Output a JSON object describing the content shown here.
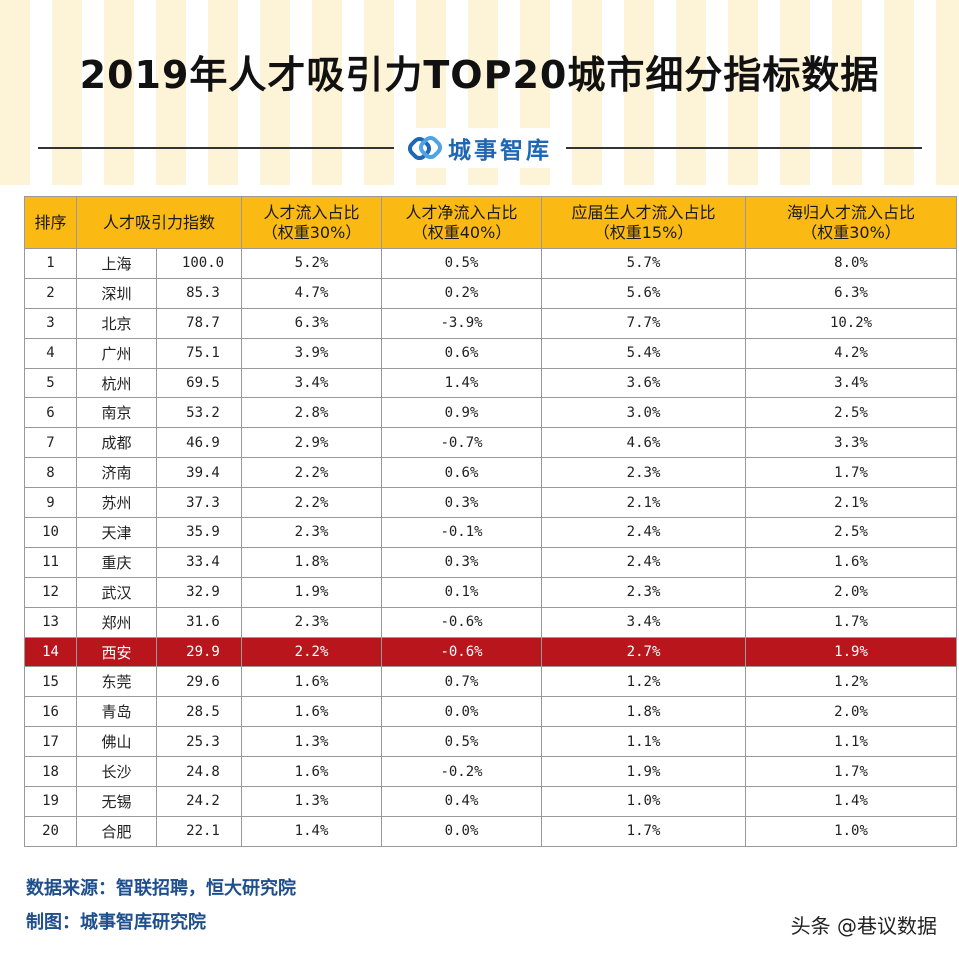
{
  "title": "2019年人才吸引力TOP20城市细分指标数据",
  "brand": {
    "name": "城事智库",
    "icon": "link-logo-icon",
    "color": "#1f67b3"
  },
  "colors": {
    "header_bg": "#fbb913",
    "highlight_row": "#b8151c",
    "stripe": "#fdf3d6"
  },
  "chart_data": {
    "type": "table",
    "title": "2019年人才吸引力TOP20城市细分指标数据",
    "headers": [
      {
        "line1": "排序",
        "line2": ""
      },
      {
        "line1": "人才吸引力指数",
        "line2": ""
      },
      {
        "line1": "人才流入占比",
        "line2": "（权重30%）"
      },
      {
        "line1": "人才净流入占比",
        "line2": "（权重40%）"
      },
      {
        "line1": "应届生人才流入占比",
        "line2": "（权重15%）"
      },
      {
        "line1": "海归人才流入占比",
        "line2": "（权重30%）"
      }
    ],
    "highlight_rank": "14",
    "rows": [
      {
        "rank": "1",
        "city": "上海",
        "index": "100.0",
        "inflow": "5.2%",
        "net": "0.5%",
        "grad": "5.7%",
        "returnee": "8.0%"
      },
      {
        "rank": "2",
        "city": "深圳",
        "index": "85.3",
        "inflow": "4.7%",
        "net": "0.2%",
        "grad": "5.6%",
        "returnee": "6.3%"
      },
      {
        "rank": "3",
        "city": "北京",
        "index": "78.7",
        "inflow": "6.3%",
        "net": "-3.9%",
        "grad": "7.7%",
        "returnee": "10.2%"
      },
      {
        "rank": "4",
        "city": "广州",
        "index": "75.1",
        "inflow": "3.9%",
        "net": "0.6%",
        "grad": "5.4%",
        "returnee": "4.2%"
      },
      {
        "rank": "5",
        "city": "杭州",
        "index": "69.5",
        "inflow": "3.4%",
        "net": "1.4%",
        "grad": "3.6%",
        "returnee": "3.4%"
      },
      {
        "rank": "6",
        "city": "南京",
        "index": "53.2",
        "inflow": "2.8%",
        "net": "0.9%",
        "grad": "3.0%",
        "returnee": "2.5%"
      },
      {
        "rank": "7",
        "city": "成都",
        "index": "46.9",
        "inflow": "2.9%",
        "net": "-0.7%",
        "grad": "4.6%",
        "returnee": "3.3%"
      },
      {
        "rank": "8",
        "city": "济南",
        "index": "39.4",
        "inflow": "2.2%",
        "net": "0.6%",
        "grad": "2.3%",
        "returnee": "1.7%"
      },
      {
        "rank": "9",
        "city": "苏州",
        "index": "37.3",
        "inflow": "2.2%",
        "net": "0.3%",
        "grad": "2.1%",
        "returnee": "2.1%"
      },
      {
        "rank": "10",
        "city": "天津",
        "index": "35.9",
        "inflow": "2.3%",
        "net": "-0.1%",
        "grad": "2.4%",
        "returnee": "2.5%"
      },
      {
        "rank": "11",
        "city": "重庆",
        "index": "33.4",
        "inflow": "1.8%",
        "net": "0.3%",
        "grad": "2.4%",
        "returnee": "1.6%"
      },
      {
        "rank": "12",
        "city": "武汉",
        "index": "32.9",
        "inflow": "1.9%",
        "net": "0.1%",
        "grad": "2.3%",
        "returnee": "2.0%"
      },
      {
        "rank": "13",
        "city": "郑州",
        "index": "31.6",
        "inflow": "2.3%",
        "net": "-0.6%",
        "grad": "3.4%",
        "returnee": "1.7%"
      },
      {
        "rank": "14",
        "city": "西安",
        "index": "29.9",
        "inflow": "2.2%",
        "net": "-0.6%",
        "grad": "2.7%",
        "returnee": "1.9%"
      },
      {
        "rank": "15",
        "city": "东莞",
        "index": "29.6",
        "inflow": "1.6%",
        "net": "0.7%",
        "grad": "1.2%",
        "returnee": "1.2%"
      },
      {
        "rank": "16",
        "city": "青岛",
        "index": "28.5",
        "inflow": "1.6%",
        "net": "0.0%",
        "grad": "1.8%",
        "returnee": "2.0%"
      },
      {
        "rank": "17",
        "city": "佛山",
        "index": "25.3",
        "inflow": "1.3%",
        "net": "0.5%",
        "grad": "1.1%",
        "returnee": "1.1%"
      },
      {
        "rank": "18",
        "city": "长沙",
        "index": "24.8",
        "inflow": "1.6%",
        "net": "-0.2%",
        "grad": "1.9%",
        "returnee": "1.7%"
      },
      {
        "rank": "19",
        "city": "无锡",
        "index": "24.2",
        "inflow": "1.3%",
        "net": "0.4%",
        "grad": "1.0%",
        "returnee": "1.4%"
      },
      {
        "rank": "20",
        "city": "合肥",
        "index": "22.1",
        "inflow": "1.4%",
        "net": "0.0%",
        "grad": "1.7%",
        "returnee": "1.0%"
      }
    ]
  },
  "footer": {
    "source": "数据来源：智联招聘，恒大研究院",
    "maker": "制图：城事智库研究院"
  },
  "watermark": "头条 @巷议数据"
}
